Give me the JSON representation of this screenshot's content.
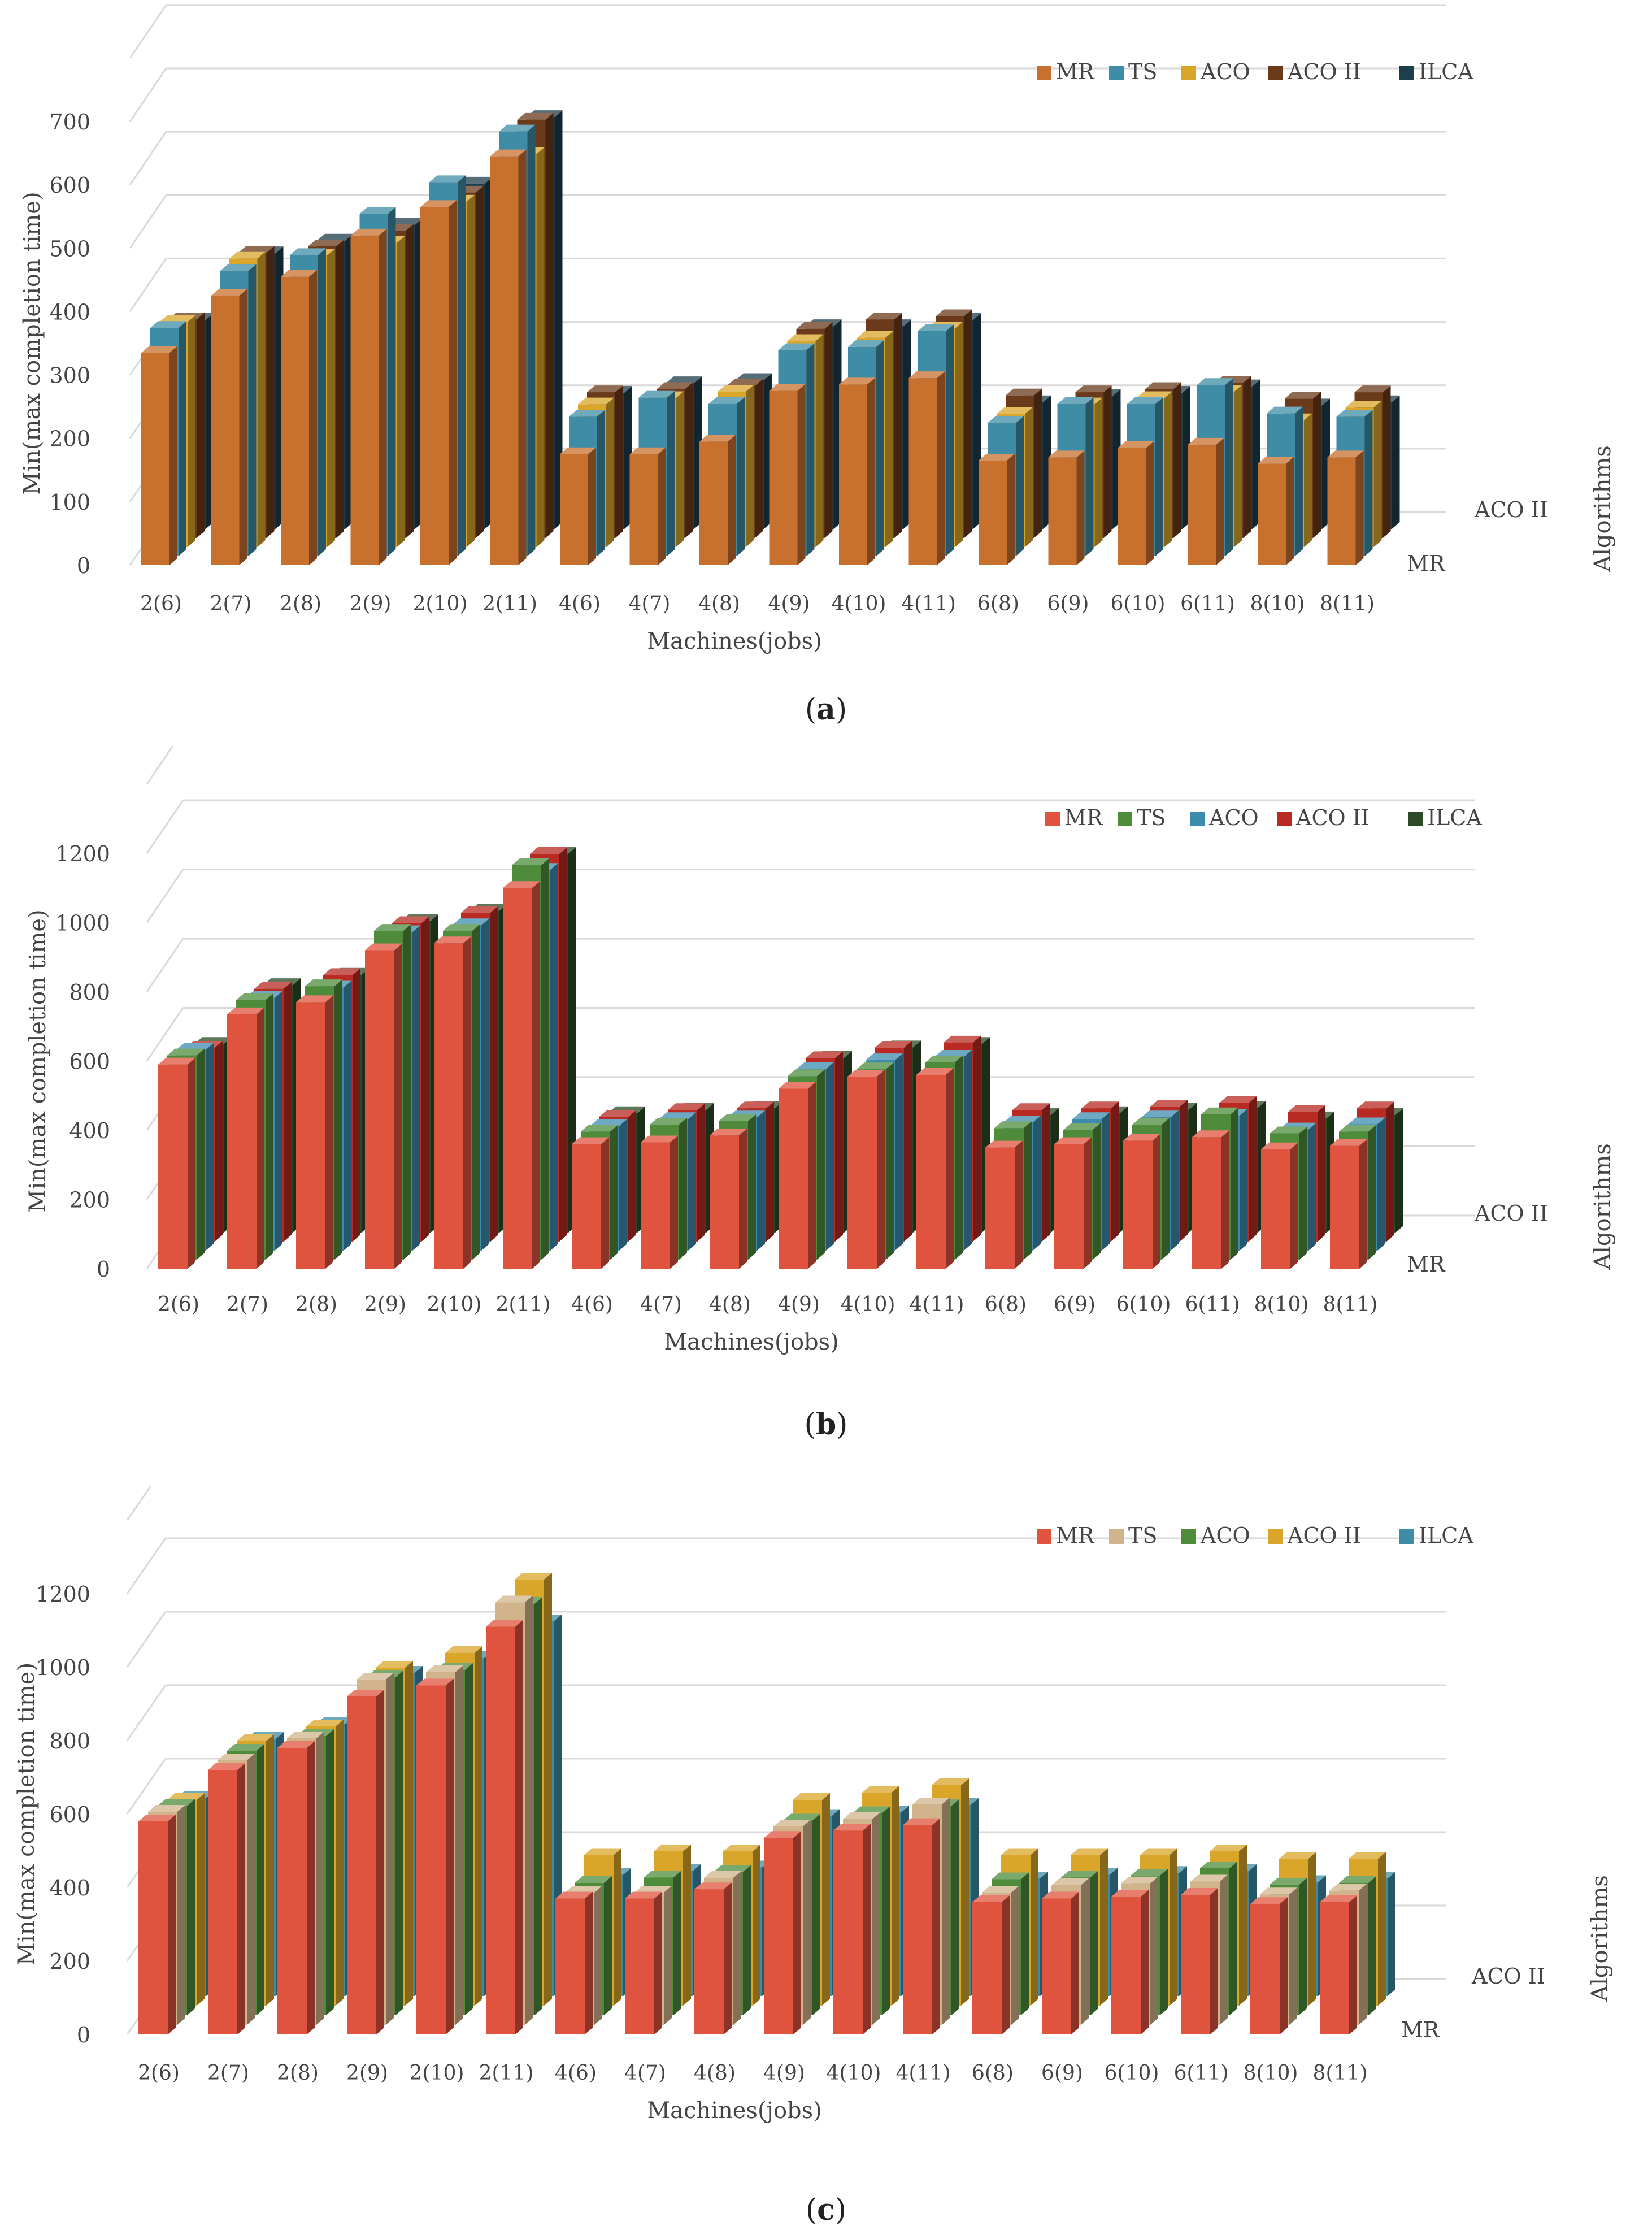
{
  "categories": [
    "2(6)",
    "2(7)",
    "2(8)",
    "2(9)",
    "2(10)",
    "2(11)",
    "4(6)",
    "4(7)",
    "4(8)",
    "4(9)",
    "4(10)",
    "4(11)",
    "6(8)",
    "6(9)",
    "6(10)",
    "6(11)",
    "8(10)",
    "8(11)"
  ],
  "chart_data": [
    {
      "type": "bar",
      "panel_label": "a",
      "title": "",
      "xlabel": "Machines(jobs)",
      "ylabel": "Min(max completion time)",
      "zlabel": "Algorithms",
      "depth_axis_labels": [
        "MR",
        "ACO II"
      ],
      "ylim": [
        0,
        700
      ],
      "yticks": [
        0,
        100,
        200,
        300,
        400,
        500,
        600,
        700
      ],
      "legend_position": "top-right",
      "series": [
        {
          "name": "MR",
          "color": "#C8702E",
          "values": [
            335,
            425,
            455,
            520,
            565,
            645,
            175,
            175,
            195,
            275,
            285,
            295,
            165,
            170,
            185,
            190,
            160,
            170
          ]
        },
        {
          "name": "TS",
          "color": "#3F8CA6",
          "values": [
            360,
            450,
            475,
            540,
            590,
            670,
            220,
            250,
            240,
            325,
            330,
            355,
            210,
            240,
            240,
            270,
            225,
            220
          ]
        },
        {
          "name": "ACO",
          "color": "#D9A629",
          "values": [
            355,
            455,
            460,
            480,
            545,
            620,
            225,
            235,
            245,
            325,
            330,
            345,
            210,
            225,
            235,
            245,
            200,
            220
          ]
        },
        {
          "name": "ACO II",
          "color": "#6B3A1B",
          "values": [
            345,
            450,
            460,
            485,
            545,
            660,
            230,
            235,
            240,
            330,
            345,
            350,
            225,
            230,
            235,
            245,
            220,
            230
          ]
        },
        {
          "name": "ILCA",
          "color": "#1F3E4C",
          "values": [
            330,
            435,
            455,
            480,
            545,
            650,
            215,
            230,
            235,
            320,
            320,
            330,
            200,
            210,
            215,
            225,
            195,
            200
          ]
        }
      ]
    },
    {
      "type": "bar",
      "panel_label": "b",
      "title": "",
      "xlabel": "Machines(jobs)",
      "ylabel": "Min(max completion time)",
      "zlabel": "Algorithms",
      "depth_axis_labels": [
        "MR",
        "ACO II"
      ],
      "ylim": [
        0,
        1200
      ],
      "yticks": [
        0,
        200,
        400,
        600,
        800,
        1000,
        1200
      ],
      "legend_position": "top-right",
      "series": [
        {
          "name": "MR",
          "color": "#E0533E",
          "values": [
            590,
            735,
            770,
            920,
            940,
            1100,
            360,
            365,
            385,
            520,
            555,
            560,
            350,
            360,
            370,
            380,
            345,
            355
          ]
        },
        {
          "name": "TS",
          "color": "#4E8C3C",
          "values": [
            590,
            750,
            790,
            950,
            950,
            1140,
            370,
            390,
            400,
            530,
            550,
            570,
            380,
            375,
            390,
            420,
            365,
            370
          ]
        },
        {
          "name": "ACO",
          "color": "#3D8CB0",
          "values": [
            580,
            730,
            760,
            920,
            940,
            1100,
            360,
            380,
            385,
            525,
            550,
            560,
            370,
            380,
            385,
            390,
            350,
            365
          ]
        },
        {
          "name": "ACO II",
          "color": "#B82A22",
          "values": [
            560,
            730,
            770,
            920,
            950,
            1120,
            360,
            380,
            385,
            530,
            560,
            575,
            380,
            385,
            390,
            400,
            375,
            385
          ]
        },
        {
          "name": "ILCA",
          "color": "#2C4A26",
          "values": [
            545,
            715,
            745,
            900,
            930,
            1095,
            345,
            355,
            360,
            505,
            535,
            545,
            340,
            345,
            355,
            360,
            330,
            340
          ]
        }
      ]
    },
    {
      "type": "bar",
      "panel_label": "c",
      "title": "",
      "xlabel": "Machines(jobs)",
      "ylabel": "Min(max completion time)",
      "zlabel": "Algorithms",
      "depth_axis_labels": [
        "MR",
        "ACO II"
      ],
      "ylim": [
        0,
        1200
      ],
      "yticks": [
        0,
        200,
        400,
        600,
        800,
        1000,
        1200
      ],
      "legend_position": "top-right",
      "series": [
        {
          "name": "MR",
          "color": "#E0533E",
          "values": [
            580,
            720,
            780,
            920,
            950,
            1110,
            370,
            370,
            395,
            535,
            555,
            570,
            360,
            370,
            375,
            380,
            355,
            360
          ]
        },
        {
          "name": "TS",
          "color": "#D2B48C",
          "values": [
            580,
            720,
            780,
            940,
            960,
            1150,
            360,
            360,
            400,
            540,
            560,
            600,
            360,
            380,
            385,
            390,
            355,
            365
          ]
        },
        {
          "name": "ACO",
          "color": "#4E8C3C",
          "values": [
            570,
            720,
            760,
            920,
            940,
            1120,
            360,
            375,
            390,
            530,
            550,
            570,
            370,
            375,
            380,
            400,
            355,
            360
          ]
        },
        {
          "name": "ACO II",
          "color": "#D9A629",
          "values": [
            560,
            720,
            760,
            920,
            960,
            1160,
            410,
            420,
            420,
            560,
            580,
            600,
            410,
            410,
            410,
            420,
            400,
            400
          ]
        },
        {
          "name": "ILCA",
          "color": "#3F8CA6",
          "values": [
            540,
            700,
            740,
            880,
            920,
            1020,
            330,
            340,
            350,
            490,
            500,
            520,
            320,
            330,
            335,
            340,
            310,
            320
          ]
        }
      ]
    }
  ]
}
